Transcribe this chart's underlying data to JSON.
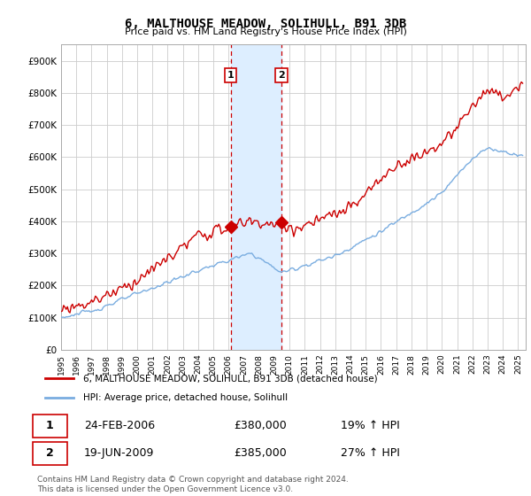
{
  "title": "6, MALTHOUSE MEADOW, SOLIHULL, B91 3DB",
  "subtitle": "Price paid vs. HM Land Registry's House Price Index (HPI)",
  "ylabel_ticks": [
    "£0",
    "£100K",
    "£200K",
    "£300K",
    "£400K",
    "£500K",
    "£600K",
    "£700K",
    "£800K",
    "£900K"
  ],
  "ytick_values": [
    0,
    100000,
    200000,
    300000,
    400000,
    500000,
    600000,
    700000,
    800000,
    900000
  ],
  "ylim": [
    0,
    950000
  ],
  "xlim_start": 1995.0,
  "xlim_end": 2025.5,
  "red_color": "#cc0000",
  "blue_color": "#7aade0",
  "shade_color": "#ddeeff",
  "transaction1_date": 2006.13,
  "transaction2_date": 2009.47,
  "transaction1_price": 380000,
  "transaction2_price": 385000,
  "legend_line1": "6, MALTHOUSE MEADOW, SOLIHULL, B91 3DB (detached house)",
  "legend_line2": "HPI: Average price, detached house, Solihull",
  "table_row1": [
    "1",
    "24-FEB-2006",
    "£380,000",
    "19% ↑ HPI"
  ],
  "table_row2": [
    "2",
    "19-JUN-2009",
    "£385,000",
    "27% ↑ HPI"
  ],
  "footnote": "Contains HM Land Registry data © Crown copyright and database right 2024.\nThis data is licensed under the Open Government Licence v3.0.",
  "background_color": "#ffffff",
  "grid_color": "#cccccc"
}
